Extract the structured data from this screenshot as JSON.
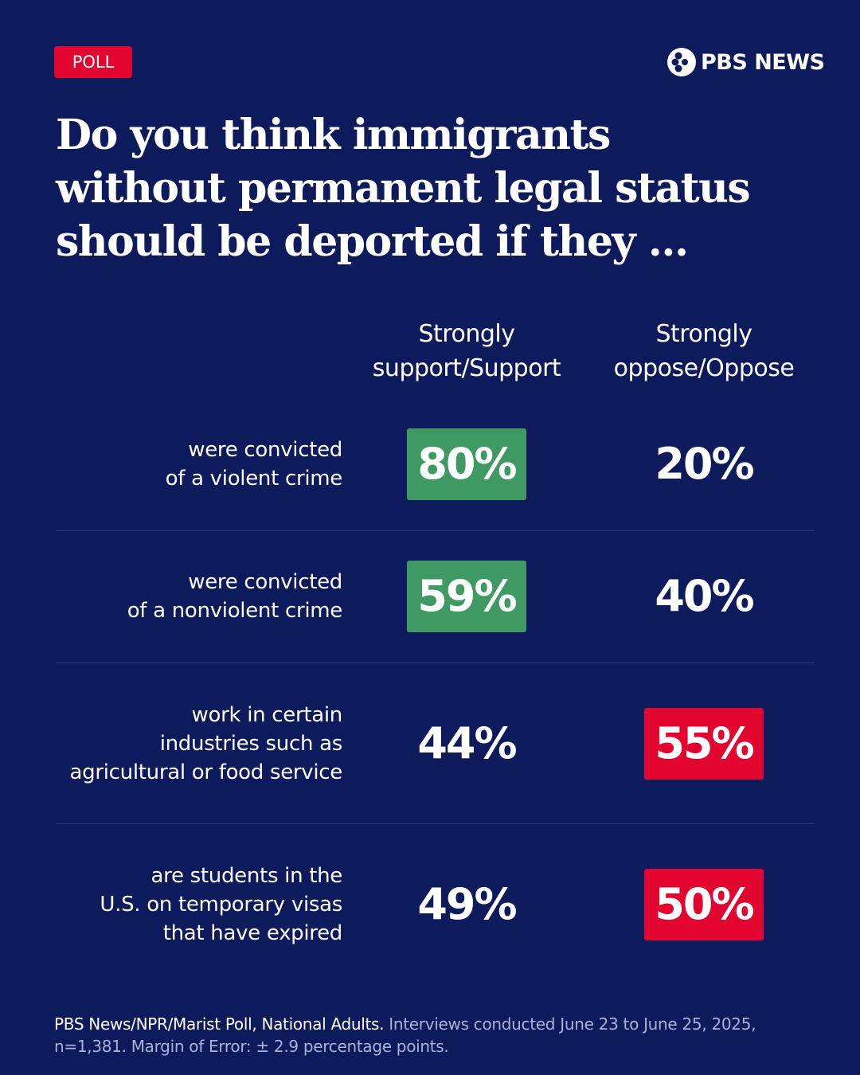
{
  "badge": "POLL",
  "brand": "PBS NEWS",
  "title": "Do you think immigrants without permanent legal status should be deported if they ...",
  "columns": [
    "Strongly support/Support",
    "Strongly oppose/Oppose"
  ],
  "highlight_colors": [
    "#3e9a62",
    "#e1052f"
  ],
  "rows": [
    {
      "label_lines": [
        "were convicted",
        "of a violent crime"
      ],
      "cells": [
        "80%",
        "20%"
      ],
      "highlight": 0
    },
    {
      "label_lines": [
        "were convicted",
        "of a nonviolent crime"
      ],
      "cells": [
        "59%",
        "40%"
      ],
      "highlight": 0
    },
    {
      "label_lines": [
        "work in certain",
        "industries such as",
        "agricultural or food service"
      ],
      "cells": [
        "44%",
        "55%"
      ],
      "highlight": 1
    },
    {
      "label_lines": [
        "are students in the",
        "U.S. on temporary visas",
        "that have expired"
      ],
      "cells": [
        "49%",
        "50%"
      ],
      "highlight": 1
    }
  ],
  "footnote": {
    "source": "PBS News/NPR/Marist Poll, National Adults.",
    "details": "Interviews conducted June 23 to June 25, 2025, n=1,381. Margin of Error: ± 2.9 percentage points."
  }
}
